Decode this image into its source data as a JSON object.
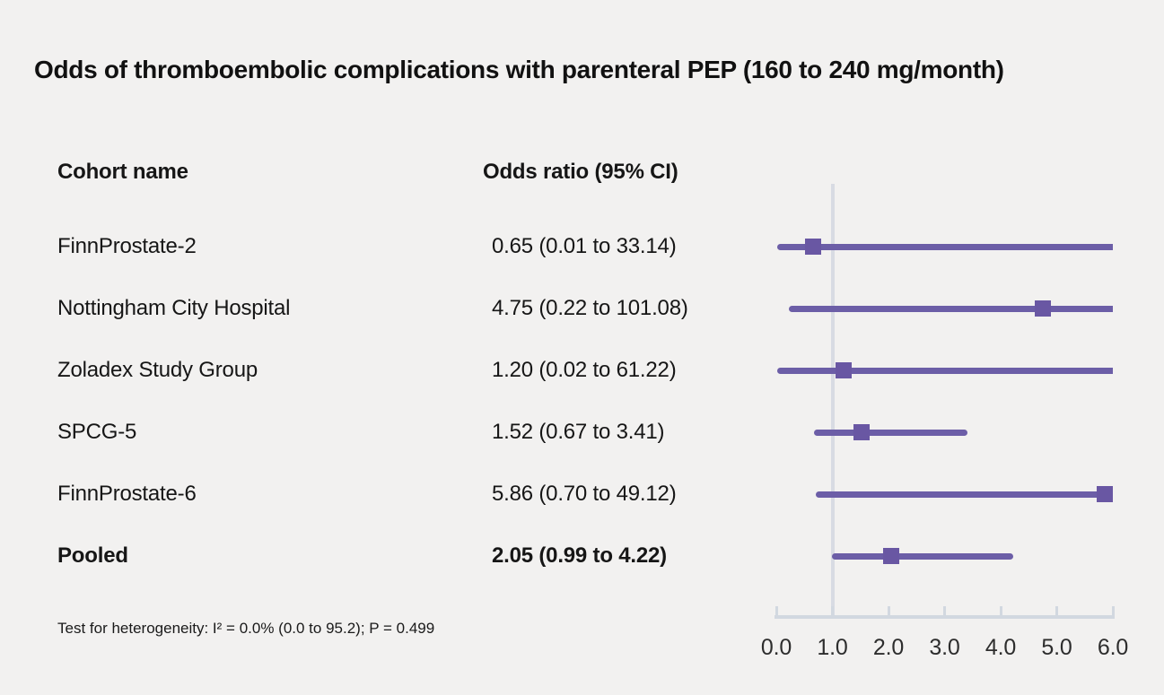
{
  "title": "Odds of thromboembolic complications with parenteral PEP (160 to 240 mg/month)",
  "columns": {
    "cohort": "Cohort name",
    "or": "Odds ratio (95% CI)"
  },
  "footnote": "Test for heterogeneity: I² = 0.0% (0.0 to 95.2); P = 0.499",
  "colors": {
    "background": "#f2f1f0",
    "ci_line": "#6c5ea7",
    "marker": "#6957a3",
    "axis": "#d2d8e0",
    "reference_line": "#d8dbe3",
    "text": "#161616"
  },
  "chart_data": {
    "type": "forest",
    "title": "Odds of thromboembolic complications with parenteral PEP (160 to 240 mg/month)",
    "xlabel": "Odds ratio",
    "xlim": [
      0.0,
      6.0
    ],
    "reference_value": 1.0,
    "axis_ticks": [
      "0.0",
      "1.0",
      "2.0",
      "3.0",
      "4.0",
      "5.0",
      "6.0"
    ],
    "rows": [
      {
        "cohort": "FinnProstate-2",
        "label": "0.65 (0.01 to 33.14)",
        "or": 0.65,
        "low": 0.01,
        "high": 33.14,
        "pooled": false
      },
      {
        "cohort": "Nottingham City Hospital",
        "label": "4.75 (0.22 to 101.08)",
        "or": 4.75,
        "low": 0.22,
        "high": 101.08,
        "pooled": false
      },
      {
        "cohort": "Zoladex Study Group",
        "label": "1.20 (0.02 to 61.22)",
        "or": 1.2,
        "low": 0.02,
        "high": 61.22,
        "pooled": false
      },
      {
        "cohort": "SPCG-5",
        "label": "1.52 (0.67 to 3.41)",
        "or": 1.52,
        "low": 0.67,
        "high": 3.41,
        "pooled": false
      },
      {
        "cohort": "FinnProstate-6",
        "label": "5.86 (0.70 to 49.12)",
        "or": 5.86,
        "low": 0.7,
        "high": 49.12,
        "pooled": false
      },
      {
        "cohort": "Pooled",
        "label": "2.05 (0.99 to 4.22)",
        "or": 2.05,
        "low": 0.99,
        "high": 4.22,
        "pooled": true
      }
    ],
    "heterogeneity": "Test for heterogeneity: I² = 0.0% (0.0 to 95.2); P = 0.499"
  }
}
